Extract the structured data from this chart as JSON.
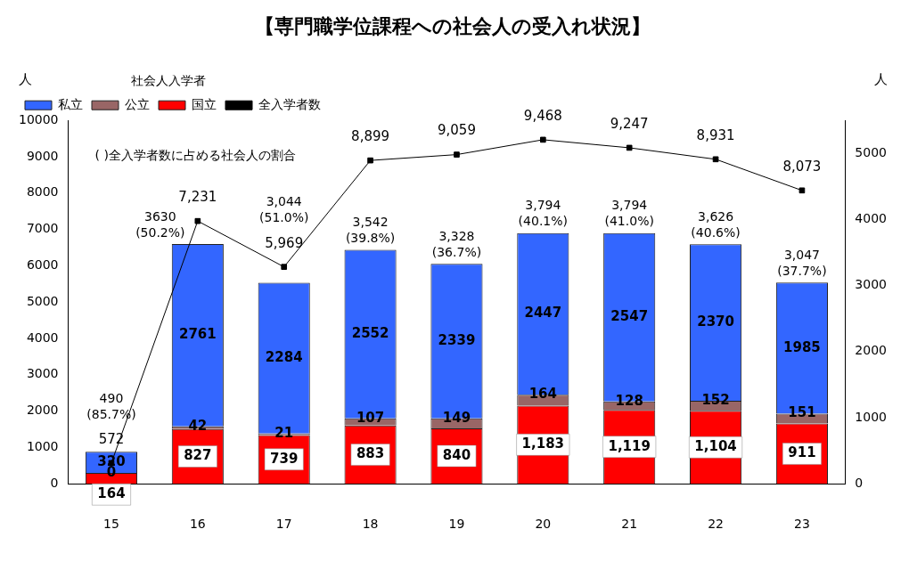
{
  "chart_data": {
    "type": "bar",
    "title": "【専門職学位課程への社会人の受入れ状況】",
    "ylabel": "人",
    "y2label": "人",
    "legend_title": "社会人入学者",
    "categories": [
      "15",
      "16",
      "17",
      "18",
      "19",
      "20",
      "21",
      "22",
      "23"
    ],
    "stacked": true,
    "series": [
      {
        "name": "国立",
        "color": "#ff0000",
        "axis": "y2",
        "values": [
          164,
          827,
          739,
          883,
          840,
          1183,
          1119,
          1104,
          911
        ],
        "value_labels": [
          "164",
          "827",
          "739",
          "883",
          "840",
          "1,183",
          "1,119",
          "1,104",
          "911"
        ]
      },
      {
        "name": "公立",
        "color": "#996666",
        "axis": "y2",
        "values": [
          0,
          42,
          21,
          107,
          149,
          164,
          128,
          152,
          151
        ],
        "value_labels": [
          "0",
          "42",
          "21",
          "107",
          "149",
          "164",
          "128",
          "152",
          "151"
        ]
      },
      {
        "name": "私立",
        "color": "#3366ff",
        "axis": "y2",
        "values": [
          320,
          2761,
          2284,
          2552,
          2339,
          2447,
          2547,
          2370,
          1985
        ],
        "value_labels": [
          "320",
          "2761",
          "2284",
          "2552",
          "2339",
          "2447",
          "2547",
          "2370",
          "1985"
        ]
      },
      {
        "name": "全入学者数",
        "type": "line",
        "color": "#000000",
        "axis": "y",
        "marker": "square",
        "values": [
          572,
          7231,
          5969,
          8899,
          9059,
          9468,
          9247,
          8931,
          8073
        ],
        "value_labels": [
          "572",
          "7,231",
          "5,969",
          "8,899",
          "9,059",
          "9,468",
          "9,247",
          "8,931",
          "8,073"
        ]
      }
    ],
    "ylim": [
      0,
      10000
    ],
    "yticks": [
      0,
      1000,
      2000,
      3000,
      4000,
      5000,
      6000,
      7000,
      8000,
      9000,
      10000
    ],
    "y2lim": [
      0,
      5500
    ],
    "y2ticks": [
      0,
      1000,
      2000,
      3000,
      4000,
      5000
    ],
    "grid": false,
    "legend": "top left",
    "annotations": [
      "( )全入学者数に占める社会人の割合",
      "490\n(85.7%)",
      "3630\n(50.2%)",
      "3,044\n(51.0%)",
      "3,542\n(39.8%)",
      "3,328\n(36.7%)",
      "3,794\n(40.1%)",
      "3,794\n(41.0%)",
      "3,626\n(40.6%)",
      "3,047\n(37.7%)"
    ]
  }
}
